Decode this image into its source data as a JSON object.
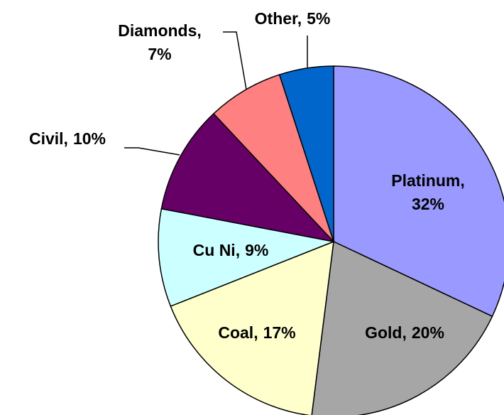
{
  "chart_data": {
    "type": "pie",
    "categories": [
      "Platinum,",
      "Gold,",
      "Coal,",
      "Cu Ni,",
      "Civil,",
      "Diamonds,",
      "Other,"
    ],
    "values": [
      32,
      20,
      17,
      9,
      10,
      7,
      5
    ],
    "value_labels": [
      "32%",
      "20%",
      "17%",
      "9%",
      "10%",
      "7%",
      "5%"
    ],
    "colors": [
      "#9999ff",
      "#a6a6a6",
      "#ffffcc",
      "#ccffff",
      "#660066",
      "#ff8080",
      "#0066cc"
    ]
  }
}
